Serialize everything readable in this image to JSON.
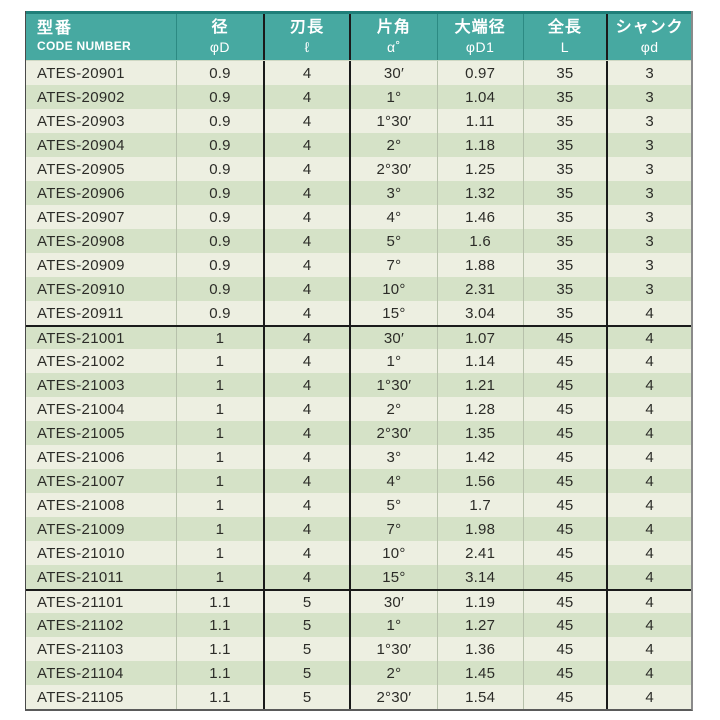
{
  "colors": {
    "header_teal": "#47a9a1",
    "header_top_border": "#1f7f79",
    "row_light": "#edefe1",
    "row_green": "#d5e2c7",
    "heavy_line": "#1a1a1a",
    "text": "#2c2c28",
    "header_text": "#ffffff"
  },
  "table": {
    "columns": [
      {
        "jp": "型番",
        "sub": "CODE NUMBER"
      },
      {
        "jp": "径",
        "sub": "φD"
      },
      {
        "jp": "刃長",
        "sub": "ℓ"
      },
      {
        "jp": "片角",
        "sub": "α˚"
      },
      {
        "jp": "大端径",
        "sub": "φD1"
      },
      {
        "jp": "全長",
        "sub": "L"
      },
      {
        "jp": "シャンク",
        "sub": "φd"
      }
    ],
    "groups": [
      {
        "rows": [
          {
            "code": "ATES-20901",
            "d": "0.9",
            "l": "4",
            "angle": "30′",
            "d1": "0.97",
            "L": "35",
            "shank": "3"
          },
          {
            "code": "ATES-20902",
            "d": "0.9",
            "l": "4",
            "angle": "1°",
            "d1": "1.04",
            "L": "35",
            "shank": "3"
          },
          {
            "code": "ATES-20903",
            "d": "0.9",
            "l": "4",
            "angle": "1°30′",
            "d1": "1.11",
            "L": "35",
            "shank": "3"
          },
          {
            "code": "ATES-20904",
            "d": "0.9",
            "l": "4",
            "angle": "2°",
            "d1": "1.18",
            "L": "35",
            "shank": "3"
          },
          {
            "code": "ATES-20905",
            "d": "0.9",
            "l": "4",
            "angle": "2°30′",
            "d1": "1.25",
            "L": "35",
            "shank": "3"
          },
          {
            "code": "ATES-20906",
            "d": "0.9",
            "l": "4",
            "angle": "3°",
            "d1": "1.32",
            "L": "35",
            "shank": "3"
          },
          {
            "code": "ATES-20907",
            "d": "0.9",
            "l": "4",
            "angle": "4°",
            "d1": "1.46",
            "L": "35",
            "shank": "3"
          },
          {
            "code": "ATES-20908",
            "d": "0.9",
            "l": "4",
            "angle": "5°",
            "d1": "1.6",
            "L": "35",
            "shank": "3"
          },
          {
            "code": "ATES-20909",
            "d": "0.9",
            "l": "4",
            "angle": "7°",
            "d1": "1.88",
            "L": "35",
            "shank": "3"
          },
          {
            "code": "ATES-20910",
            "d": "0.9",
            "l": "4",
            "angle": "10°",
            "d1": "2.31",
            "L": "35",
            "shank": "3"
          },
          {
            "code": "ATES-20911",
            "d": "0.9",
            "l": "4",
            "angle": "15°",
            "d1": "3.04",
            "L": "35",
            "shank": "4"
          }
        ]
      },
      {
        "rows": [
          {
            "code": "ATES-21001",
            "d": "1",
            "l": "4",
            "angle": "30′",
            "d1": "1.07",
            "L": "45",
            "shank": "4"
          },
          {
            "code": "ATES-21002",
            "d": "1",
            "l": "4",
            "angle": "1°",
            "d1": "1.14",
            "L": "45",
            "shank": "4"
          },
          {
            "code": "ATES-21003",
            "d": "1",
            "l": "4",
            "angle": "1°30′",
            "d1": "1.21",
            "L": "45",
            "shank": "4"
          },
          {
            "code": "ATES-21004",
            "d": "1",
            "l": "4",
            "angle": "2°",
            "d1": "1.28",
            "L": "45",
            "shank": "4"
          },
          {
            "code": "ATES-21005",
            "d": "1",
            "l": "4",
            "angle": "2°30′",
            "d1": "1.35",
            "L": "45",
            "shank": "4"
          },
          {
            "code": "ATES-21006",
            "d": "1",
            "l": "4",
            "angle": "3°",
            "d1": "1.42",
            "L": "45",
            "shank": "4"
          },
          {
            "code": "ATES-21007",
            "d": "1",
            "l": "4",
            "angle": "4°",
            "d1": "1.56",
            "L": "45",
            "shank": "4"
          },
          {
            "code": "ATES-21008",
            "d": "1",
            "l": "4",
            "angle": "5°",
            "d1": "1.7",
            "L": "45",
            "shank": "4"
          },
          {
            "code": "ATES-21009",
            "d": "1",
            "l": "4",
            "angle": "7°",
            "d1": "1.98",
            "L": "45",
            "shank": "4"
          },
          {
            "code": "ATES-21010",
            "d": "1",
            "l": "4",
            "angle": "10°",
            "d1": "2.41",
            "L": "45",
            "shank": "4"
          },
          {
            "code": "ATES-21011",
            "d": "1",
            "l": "4",
            "angle": "15°",
            "d1": "3.14",
            "L": "45",
            "shank": "4"
          }
        ]
      },
      {
        "rows": [
          {
            "code": "ATES-21101",
            "d": "1.1",
            "l": "5",
            "angle": "30′",
            "d1": "1.19",
            "L": "45",
            "shank": "4"
          },
          {
            "code": "ATES-21102",
            "d": "1.1",
            "l": "5",
            "angle": "1°",
            "d1": "1.27",
            "L": "45",
            "shank": "4"
          },
          {
            "code": "ATES-21103",
            "d": "1.1",
            "l": "5",
            "angle": "1°30′",
            "d1": "1.36",
            "L": "45",
            "shank": "4"
          },
          {
            "code": "ATES-21104",
            "d": "1.1",
            "l": "5",
            "angle": "2°",
            "d1": "1.45",
            "L": "45",
            "shank": "4"
          },
          {
            "code": "ATES-21105",
            "d": "1.1",
            "l": "5",
            "angle": "2°30′",
            "d1": "1.54",
            "L": "45",
            "shank": "4"
          }
        ]
      }
    ]
  }
}
